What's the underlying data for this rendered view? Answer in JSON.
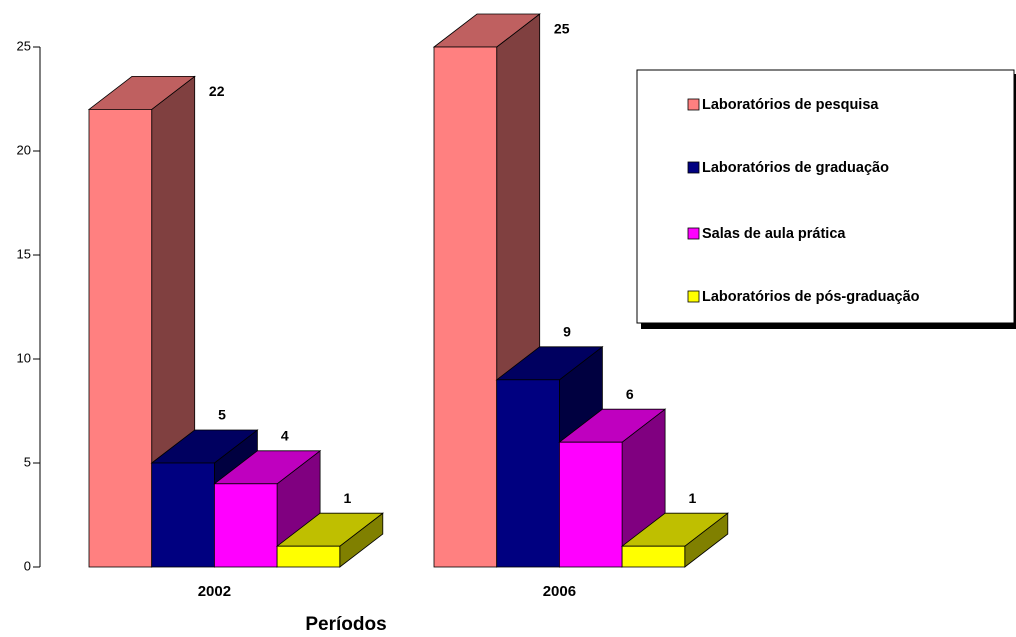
{
  "chart_data": {
    "type": "bar3d",
    "x_label": "Períodos",
    "categories": [
      "2002",
      "2006"
    ],
    "series": [
      {
        "name": "Laboratórios de pesquisa",
        "color": "#ff8080",
        "values": [
          22,
          25
        ]
      },
      {
        "name": "Laboratórios de graduação",
        "color": "#000080",
        "values": [
          5,
          9
        ]
      },
      {
        "name": "Salas de aula prática",
        "color": "#ff00ff",
        "values": [
          4,
          6
        ]
      },
      {
        "name": "Laboratórios de pós-graduação",
        "color": "#ffff00",
        "values": [
          1,
          1
        ]
      }
    ],
    "ylim": [
      0,
      25
    ],
    "yticks": [
      0,
      5,
      10,
      15,
      20,
      25
    ],
    "legend": "right"
  }
}
